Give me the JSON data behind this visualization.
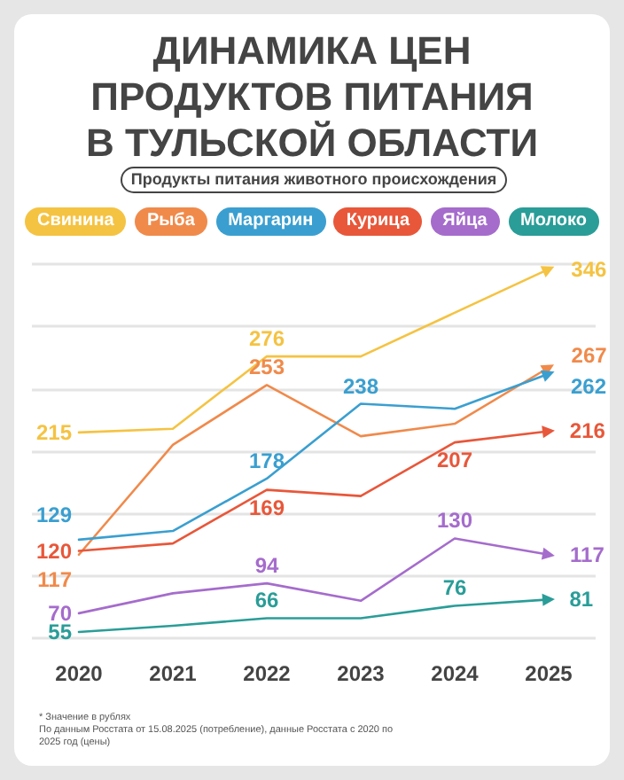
{
  "chart_data": {
    "type": "line",
    "title": "ДИНАМИКА ЦЕН ПРОДУКТОВ ПИТАНИЯ В ТУЛЬСКОЙ ОБЛАСТИ",
    "subtitle": "Продукты питания животного происхождения",
    "categories": [
      "2020",
      "2021",
      "2022",
      "2023",
      "2024",
      "2025"
    ],
    "series": [
      {
        "name": "Свинина",
        "color": "#f5c342",
        "values": [
          215,
          218,
          276,
          276,
          null,
          346
        ],
        "value_labels": [
          "215",
          null,
          "276",
          null,
          null,
          "346"
        ]
      },
      {
        "name": "Рыба",
        "color": "#f08a4b",
        "values": [
          117,
          205,
          253,
          212,
          222,
          267
        ],
        "value_labels": [
          "117",
          null,
          "253",
          null,
          null,
          "267"
        ]
      },
      {
        "name": "Маргарин",
        "color": "#3a9fd0",
        "values": [
          129,
          136,
          178,
          238,
          234,
          262
        ],
        "value_labels": [
          "129",
          null,
          "178",
          "238",
          null,
          "262"
        ]
      },
      {
        "name": "Курица",
        "color": "#e8573a",
        "values": [
          120,
          126,
          169,
          164,
          207,
          216
        ],
        "value_labels": [
          "120",
          null,
          "169",
          null,
          "207",
          "216"
        ]
      },
      {
        "name": "Яйца",
        "color": "#a56ccc",
        "values": [
          70,
          86,
          94,
          80,
          130,
          117
        ],
        "value_labels": [
          "70",
          null,
          "94",
          null,
          "130",
          "117"
        ]
      },
      {
        "name": "Молоко",
        "color": "#2a9d98",
        "values": [
          55,
          60,
          66,
          66,
          76,
          81
        ],
        "value_labels": [
          "55",
          null,
          "66",
          null,
          "76",
          "81"
        ]
      }
    ],
    "ylim": [
      50,
      350
    ],
    "yticks": [
      {
        "value": 50,
        "label": null
      },
      {
        "value": 100,
        "label": null
      },
      {
        "value": 150,
        "label": null
      },
      {
        "value": 200,
        "label": null
      },
      {
        "value": 250,
        "label": null
      },
      {
        "value": 300,
        "label": null
      },
      {
        "value": 350,
        "label": null
      }
    ],
    "tick_labels": "x",
    "grid": "y",
    "legend": "top",
    "marker": "none",
    "annotations": [
      "* Значение в рублях",
      "По данным Росстата от 15.08.2025 (потребление), данные Росстата с 2020 по 2025 год (цены)"
    ]
  }
}
